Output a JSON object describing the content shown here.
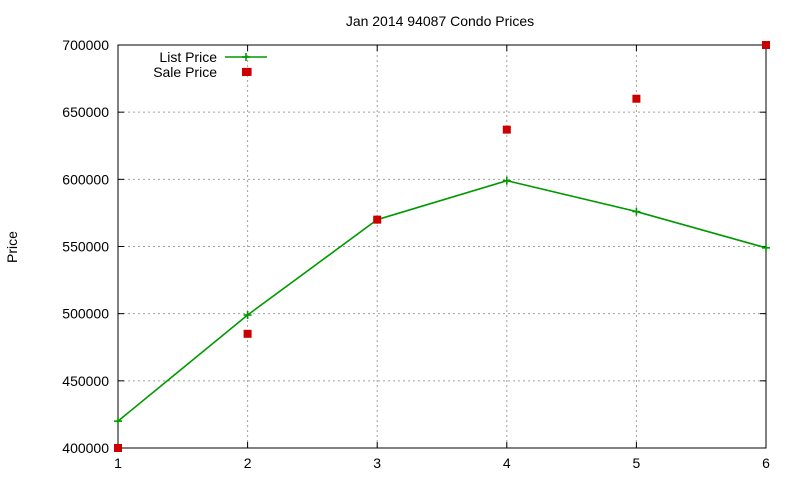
{
  "chart_data": {
    "type": "line",
    "title": "Jan 2014 94087 Condo Prices",
    "xlabel": "",
    "ylabel": "Price",
    "xlim": [
      1,
      6
    ],
    "ylim": [
      400000,
      700000
    ],
    "x_ticks": [
      1,
      2,
      3,
      4,
      5,
      6
    ],
    "y_ticks": [
      400000,
      450000,
      500000,
      550000,
      600000,
      650000,
      700000
    ],
    "grid": true,
    "legend_position": "top-left",
    "series": [
      {
        "name": "List Price",
        "style": "line+plus",
        "color": "#009900",
        "x": [
          1,
          2,
          3,
          4,
          5,
          6
        ],
        "y": [
          420000,
          499000,
          570000,
          599000,
          576000,
          549000
        ]
      },
      {
        "name": "Sale Price",
        "style": "square-points",
        "color": "#cc0000",
        "x": [
          1,
          2,
          3,
          4,
          5,
          6,
          2
        ],
        "y": [
          400000,
          485000,
          570000,
          637000,
          660000,
          700000,
          680000
        ]
      }
    ]
  }
}
